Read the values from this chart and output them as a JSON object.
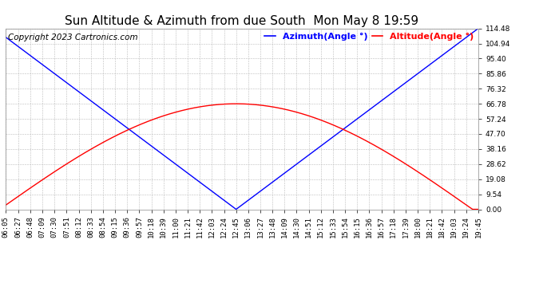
{
  "title": "Sun Altitude & Azimuth from due South  Mon May 8 19:59",
  "copyright": "Copyright 2023 Cartronics.com",
  "legend_azimuth": "Azimuth(Angle °)",
  "legend_altitude": "Altitude(Angle °)",
  "azimuth_color": "blue",
  "altitude_color": "red",
  "background_color": "#ffffff",
  "grid_color": "#bbbbbb",
  "ylim": [
    0.0,
    114.48
  ],
  "yticks": [
    0.0,
    9.54,
    19.08,
    28.62,
    38.16,
    47.7,
    57.24,
    66.78,
    76.32,
    85.86,
    95.4,
    104.94,
    114.48
  ],
  "x_tick_labels": [
    "06:05",
    "06:27",
    "06:48",
    "07:09",
    "07:30",
    "07:51",
    "08:12",
    "08:33",
    "08:54",
    "09:15",
    "09:36",
    "09:57",
    "10:18",
    "10:39",
    "11:00",
    "11:21",
    "11:42",
    "12:03",
    "12:24",
    "12:45",
    "13:06",
    "13:27",
    "13:48",
    "14:09",
    "14:30",
    "14:51",
    "15:12",
    "15:33",
    "15:54",
    "16:15",
    "16:36",
    "16:57",
    "17:18",
    "17:39",
    "18:00",
    "18:21",
    "18:42",
    "19:03",
    "19:24",
    "19:45"
  ],
  "title_fontsize": 11,
  "tick_fontsize": 6.5,
  "legend_fontsize": 8,
  "copyright_fontsize": 7.5,
  "solar_noon_label": "12:45",
  "alt_max": 66.78,
  "az_max": 114.48
}
